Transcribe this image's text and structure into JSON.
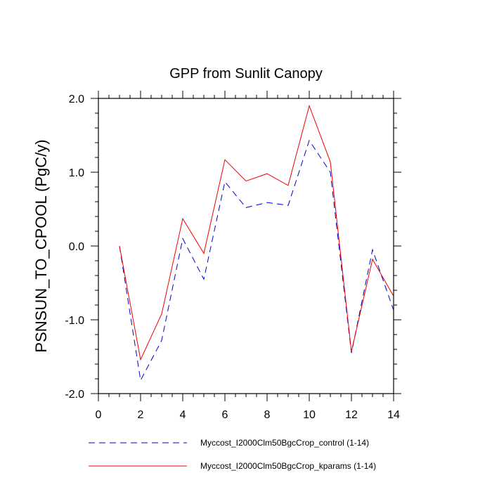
{
  "chart_data": {
    "type": "line",
    "title": "GPP from Sunlit Canopy",
    "xlabel": "",
    "ylabel": "PSNSUN_TO_CPOOL  (PgC/y)",
    "xlim": [
      0,
      14
    ],
    "ylim": [
      -2.0,
      2.0
    ],
    "xticks": [
      0,
      2,
      4,
      6,
      8,
      10,
      12,
      14
    ],
    "xtick_labels": [
      "0",
      "2",
      "4",
      "6",
      "8",
      "10",
      "12",
      "14"
    ],
    "yticks": [
      -2.0,
      -1.0,
      0.0,
      1.0,
      2.0
    ],
    "ytick_labels": [
      "-2.0",
      "-1.0",
      "0.0",
      "1.0",
      "2.0"
    ],
    "grid": false,
    "legend_position": "bottom",
    "x": [
      1,
      2,
      3,
      4,
      5,
      6,
      7,
      8,
      9,
      10,
      11,
      12,
      13,
      14
    ],
    "series": [
      {
        "name": "Myccost_I2000Clm50BgcCrop_control (1-14)",
        "color": "#0000cc",
        "style": "dashed",
        "values": [
          0.0,
          -1.82,
          -1.28,
          0.1,
          -0.45,
          0.87,
          0.52,
          0.59,
          0.55,
          1.43,
          1.0,
          -1.45,
          -0.05,
          -0.87
        ]
      },
      {
        "name": "Myccost_I2000Clm50BgcCrop_kparams (1-14)",
        "color": "#ee0000",
        "style": "solid",
        "values": [
          0.0,
          -1.54,
          -0.92,
          0.37,
          -0.1,
          1.17,
          0.88,
          0.98,
          0.82,
          1.9,
          1.14,
          -1.43,
          -0.18,
          -0.68
        ]
      }
    ]
  }
}
